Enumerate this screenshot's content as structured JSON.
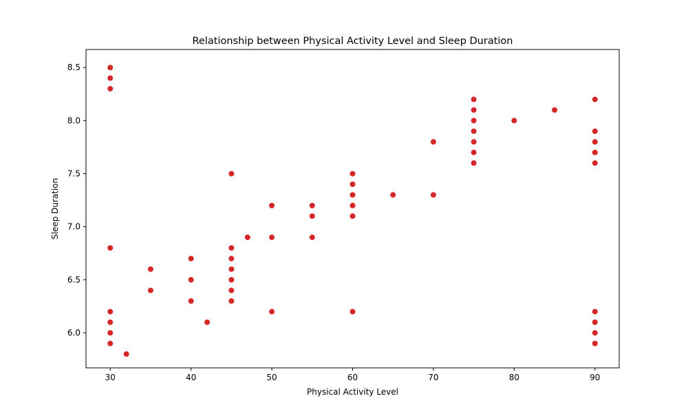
{
  "chart_data": {
    "type": "scatter",
    "title": "Relationship between Physical Activity Level and Sleep Duration",
    "xlabel": "Physical Activity Level",
    "ylabel": "Sleep Duration",
    "xlim": [
      27,
      93
    ],
    "ylim": [
      5.67,
      8.67
    ],
    "xticks": [
      30,
      40,
      50,
      60,
      70,
      80,
      90
    ],
    "yticks": [
      6.0,
      6.5,
      7.0,
      7.5,
      8.0,
      8.5
    ],
    "xtick_labels": [
      "30",
      "40",
      "50",
      "60",
      "70",
      "80",
      "90"
    ],
    "ytick_labels": [
      "6.0",
      "6.5",
      "7.0",
      "7.5",
      "8.0",
      "8.5"
    ],
    "grid": false,
    "legend": "none",
    "point_color": "#d62728",
    "points": [
      {
        "x": 30,
        "y": 8.5
      },
      {
        "x": 30,
        "y": 8.4
      },
      {
        "x": 30,
        "y": 8.3
      },
      {
        "x": 30,
        "y": 6.8
      },
      {
        "x": 30,
        "y": 6.2
      },
      {
        "x": 30,
        "y": 6.1
      },
      {
        "x": 30,
        "y": 6.0
      },
      {
        "x": 30,
        "y": 5.9
      },
      {
        "x": 32,
        "y": 5.8
      },
      {
        "x": 35,
        "y": 6.6
      },
      {
        "x": 35,
        "y": 6.4
      },
      {
        "x": 40,
        "y": 6.7
      },
      {
        "x": 40,
        "y": 6.5
      },
      {
        "x": 40,
        "y": 6.3
      },
      {
        "x": 42,
        "y": 6.1
      },
      {
        "x": 45,
        "y": 7.5
      },
      {
        "x": 45,
        "y": 6.8
      },
      {
        "x": 45,
        "y": 6.7
      },
      {
        "x": 45,
        "y": 6.6
      },
      {
        "x": 45,
        "y": 6.5
      },
      {
        "x": 45,
        "y": 6.4
      },
      {
        "x": 45,
        "y": 6.3
      },
      {
        "x": 47,
        "y": 6.9
      },
      {
        "x": 50,
        "y": 7.2
      },
      {
        "x": 50,
        "y": 6.9
      },
      {
        "x": 50,
        "y": 6.2
      },
      {
        "x": 55,
        "y": 7.2
      },
      {
        "x": 55,
        "y": 7.1
      },
      {
        "x": 55,
        "y": 6.9
      },
      {
        "x": 60,
        "y": 7.5
      },
      {
        "x": 60,
        "y": 7.4
      },
      {
        "x": 60,
        "y": 7.3
      },
      {
        "x": 60,
        "y": 7.2
      },
      {
        "x": 60,
        "y": 7.1
      },
      {
        "x": 60,
        "y": 6.2
      },
      {
        "x": 65,
        "y": 7.3
      },
      {
        "x": 70,
        "y": 7.8
      },
      {
        "x": 70,
        "y": 7.3
      },
      {
        "x": 75,
        "y": 8.2
      },
      {
        "x": 75,
        "y": 8.1
      },
      {
        "x": 75,
        "y": 8.0
      },
      {
        "x": 75,
        "y": 7.9
      },
      {
        "x": 75,
        "y": 7.8
      },
      {
        "x": 75,
        "y": 7.7
      },
      {
        "x": 75,
        "y": 7.6
      },
      {
        "x": 80,
        "y": 8.0
      },
      {
        "x": 85,
        "y": 8.1
      },
      {
        "x": 90,
        "y": 8.2
      },
      {
        "x": 90,
        "y": 7.9
      },
      {
        "x": 90,
        "y": 7.8
      },
      {
        "x": 90,
        "y": 7.7
      },
      {
        "x": 90,
        "y": 7.6
      },
      {
        "x": 90,
        "y": 6.2
      },
      {
        "x": 90,
        "y": 6.1
      },
      {
        "x": 90,
        "y": 6.0
      },
      {
        "x": 90,
        "y": 5.9
      }
    ]
  }
}
